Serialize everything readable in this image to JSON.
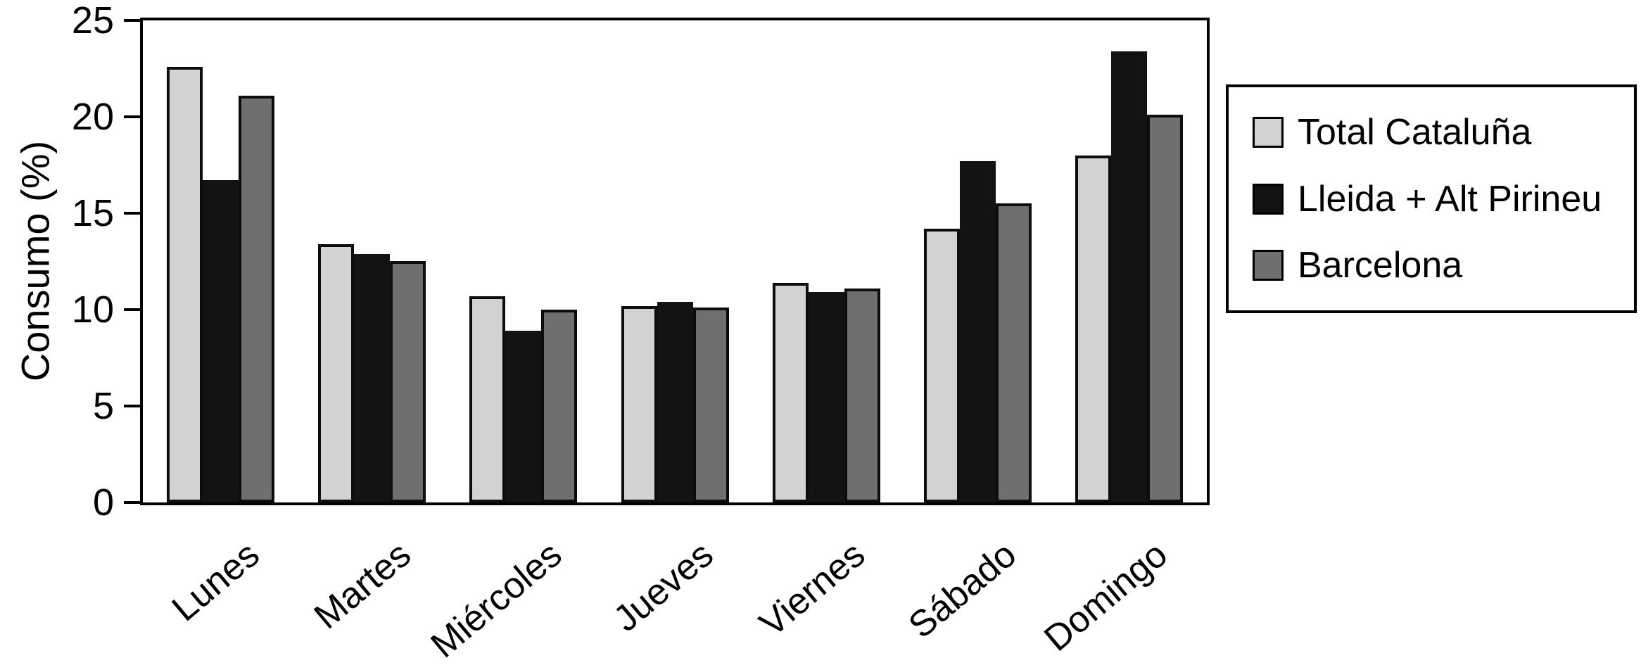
{
  "chart_data": {
    "type": "bar",
    "title": "",
    "ylabel": "Consumo (%)",
    "xlabel": "",
    "ylim": [
      0,
      25
    ],
    "yticks": [
      0,
      5,
      10,
      15,
      20,
      25
    ],
    "grid": false,
    "legend_position": "right-outside",
    "categories": [
      "Lunes",
      "Martes",
      "Miércoles",
      "Jueves",
      "Viernes",
      "Sábado",
      "Domingo"
    ],
    "series": [
      {
        "name": "Total Cataluña",
        "color": "#d2d2d2",
        "values": [
          22.6,
          13.4,
          10.7,
          10.2,
          11.4,
          14.2,
          18.0
        ]
      },
      {
        "name": "Lleida + Alt Pirineu",
        "color": "#131313",
        "values": [
          16.7,
          12.9,
          8.9,
          10.4,
          10.9,
          17.7,
          23.4
        ]
      },
      {
        "name": "Barcelona",
        "color": "#6f6f6f",
        "values": [
          21.1,
          12.5,
          10.0,
          10.1,
          11.1,
          15.5,
          20.1
        ]
      }
    ],
    "frame": "full-box",
    "bar_border_color": "#0d0d0d"
  }
}
